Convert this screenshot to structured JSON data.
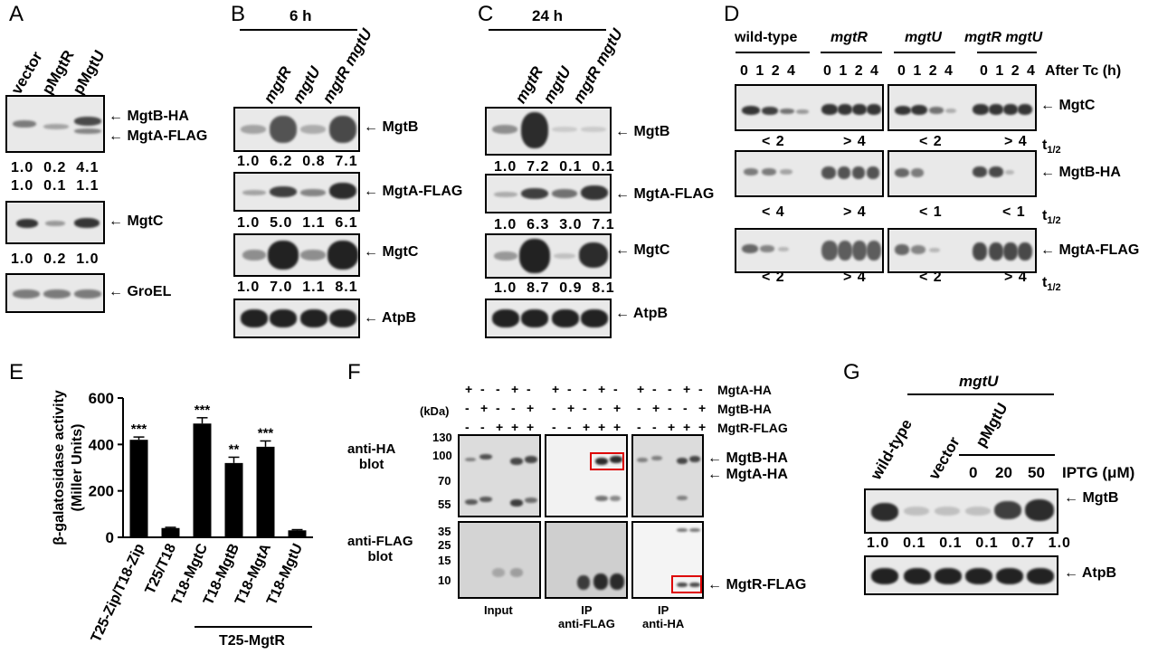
{
  "panels": {
    "A": "A",
    "B": "B",
    "C": "C",
    "D": "D",
    "E": "E",
    "F": "F",
    "G": "G"
  },
  "panelA": {
    "lanes": [
      "vector",
      "pMgtR",
      "pMgtU"
    ],
    "labels": {
      "mgtb_ha": "MgtB-HA",
      "mgta_flag": "MgtA-FLAG",
      "mgtc": "MgtC",
      "groel": "GroEL"
    },
    "row1": "1.0  0.2  4.1",
    "row2": "1.0  0.1  1.1",
    "row3": "1.0  0.2  1.0"
  },
  "panelB": {
    "time": "6 h",
    "lanes": [
      "mgtR",
      "mgtU",
      "mgtR mgtU"
    ],
    "labels": {
      "mgtb": "MgtB",
      "mgta": "MgtA-FLAG",
      "mgtc": "MgtC",
      "atpb": "AtpB"
    },
    "mgtb": "1.0  6.2  0.8  7.1",
    "mgta": "1.0  5.0  1.1  6.1",
    "mgtc": "1.0  7.0  1.1  8.1"
  },
  "panelC": {
    "time": "24 h",
    "lanes": [
      "mgtR",
      "mgtU",
      "mgtR mgtU"
    ],
    "labels": {
      "mgtb": "MgtB",
      "mgta": "MgtA-FLAG",
      "mgtc": "MgtC",
      "atpb": "AtpB"
    },
    "mgtb": "1.0  7.2  0.1  0.1",
    "mgta": "1.0  6.3  3.0  7.1",
    "mgtc": "1.0  8.7  0.9  8.1"
  },
  "panelD": {
    "strains": [
      "wild-type",
      "mgtR",
      "mgtU",
      "mgtR mgtU"
    ],
    "times": "0 1 2 4",
    "after": "After Tc (h)",
    "labels": {
      "mgtc": "MgtC",
      "mgtb": "MgtB-HA",
      "mgta": "MgtA-FLAG"
    },
    "t_half": "t",
    "t_sub": "1/2",
    "mgtc_vals": [
      "< 2",
      "> 4",
      "< 2",
      "> 4"
    ],
    "mgtb_vals": [
      "< 4",
      "> 4",
      "< 1",
      "< 1"
    ],
    "mgta_vals": [
      "< 2",
      "> 4",
      "< 2",
      "> 4"
    ]
  },
  "chart_data": {
    "type": "bar",
    "categories": [
      "T25-Zip/T18-Zip",
      "T25/T18",
      "T18-MgtC",
      "T18-MgtB",
      "T18-MgtA",
      "T18-MgtU"
    ],
    "values": [
      420,
      40,
      490,
      320,
      390,
      30
    ],
    "errors": [
      12,
      3,
      25,
      25,
      25,
      3
    ],
    "significance": [
      "***",
      "",
      "***",
      "**",
      "***",
      ""
    ],
    "ylabel": "β-galatosidase activity (Miller Units)",
    "ylabel_line1": "β-galatosidase activity",
    "ylabel_line2": "(Miller Units)",
    "yticks": [
      0,
      200,
      400,
      600
    ],
    "ylim": [
      0,
      600
    ],
    "group_label": "T25-MgtR"
  },
  "panelF": {
    "rows": {
      "mgta_ha": "MgtA-HA",
      "mgtb_ha": "MgtB-HA",
      "mgtr_flag": "MgtR-FLAG"
    },
    "kda": "(kDa)",
    "blot1": "anti-HA\nblot",
    "blot1_l1": "anti-HA",
    "blot1_l2": "blot",
    "blot2_l1": "anti-FLAG",
    "blot2_l2": "blot",
    "markers_top": [
      "130",
      "100",
      "70",
      "55"
    ],
    "markers_bot": [
      "35",
      "25",
      "15",
      "10"
    ],
    "groups": {
      "input": "Input",
      "ipflag_l1": "IP",
      "ipflag_l2": "anti-FLAG",
      "ipha_l1": "IP",
      "ipha_l2": "anti-HA"
    },
    "labels": {
      "mgtb_ha": "MgtB-HA",
      "mgta_ha": "MgtA-HA",
      "mgtr_flag": "MgtR-FLAG"
    },
    "signs_a": [
      "+",
      "-",
      "-",
      "+",
      "-"
    ],
    "signs_b": [
      "-",
      "+",
      "-",
      "-",
      "+"
    ],
    "signs_r": [
      "-",
      "-",
      "+",
      "+",
      "+"
    ],
    "plus": "+",
    "minus": "-"
  },
  "panelG": {
    "strain": "mgtU",
    "lanes": [
      "wild-type",
      "vector",
      "pMgtU"
    ],
    "iptg": "IPTG (μM)",
    "iptg_vals": [
      "0",
      "20",
      "50"
    ],
    "labels": {
      "mgtb": "MgtB",
      "atpb": "AtpB"
    },
    "vals": "1.0  0.1  0.1  0.1  0.7  1.0"
  }
}
